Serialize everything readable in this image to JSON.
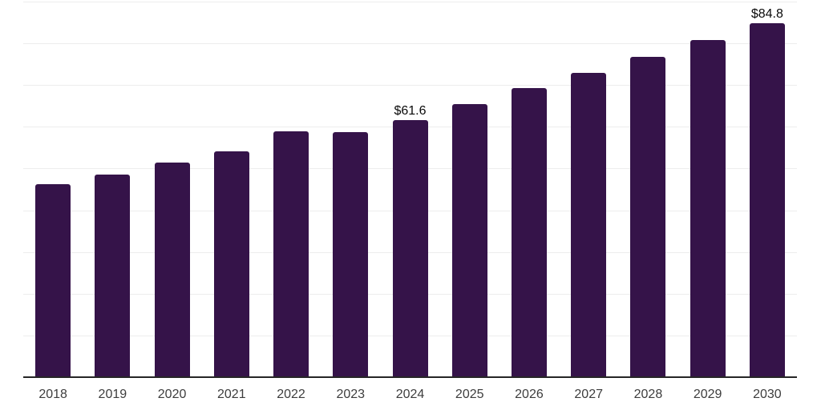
{
  "chart_data": {
    "type": "bar",
    "title": "",
    "xlabel": "",
    "ylabel": "",
    "categories": [
      "2018",
      "2019",
      "2020",
      "2021",
      "2022",
      "2023",
      "2024",
      "2025",
      "2026",
      "2027",
      "2028",
      "2029",
      "2030"
    ],
    "values": [
      46.3,
      48.6,
      51.4,
      54.2,
      58.9,
      58.8,
      61.6,
      65.5,
      69.2,
      72.9,
      76.8,
      80.7,
      84.8
    ],
    "annotations": [
      {
        "category": "2024",
        "text": "$61.6"
      },
      {
        "category": "2030",
        "text": "$84.8"
      }
    ],
    "ylim": [
      0,
      90
    ],
    "gridline_step": 10,
    "grid": "horizontal",
    "legend": "none",
    "y_axis_labels_visible": false,
    "colors": {
      "bar": "#351349",
      "annotation_text": "#0a0a0a",
      "tick_text": "#3d3d3d",
      "gridline": "#ededed",
      "axis_line": "#262626",
      "background": "#ffffff"
    }
  }
}
